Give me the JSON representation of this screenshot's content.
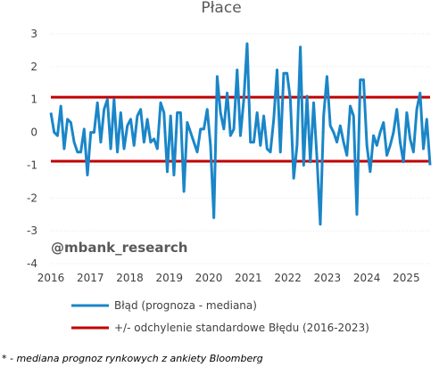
{
  "chart_data": {
    "type": "line",
    "title": "Płace",
    "ylim": [
      -4,
      3
    ],
    "yticks": [
      -4,
      -3,
      -2,
      -1,
      0,
      1,
      2,
      3
    ],
    "xlim": [
      2016,
      2025.6
    ],
    "xticks": [
      2016,
      2017,
      2018,
      2019,
      2020,
      2021,
      2022,
      2023,
      2024,
      2025
    ],
    "grid": "horizontal",
    "legend_position": "bottom",
    "series": [
      {
        "name": "Błąd (prognoza - mediana)",
        "color": "#1a86c8",
        "values": [
          0.6,
          0.0,
          -0.1,
          0.8,
          -0.5,
          0.4,
          0.3,
          -0.3,
          -0.6,
          -0.6,
          0.1,
          -1.3,
          0.0,
          0.0,
          0.9,
          -0.3,
          0.7,
          1.0,
          -0.5,
          1.0,
          -0.6,
          0.6,
          -0.5,
          0.2,
          0.4,
          -0.4,
          0.5,
          0.7,
          -0.3,
          0.4,
          -0.3,
          -0.2,
          -0.5,
          0.9,
          0.6,
          -1.2,
          0.5,
          -1.3,
          0.6,
          0.6,
          -1.8,
          0.3,
          0.0,
          -0.3,
          -0.6,
          0.1,
          0.1,
          0.7,
          -0.4,
          -2.6,
          1.7,
          0.6,
          0.1,
          1.2,
          -0.1,
          0.1,
          1.9,
          -0.1,
          1.0,
          2.7,
          -0.3,
          -0.3,
          0.6,
          -0.4,
          0.5,
          -0.5,
          -0.6,
          0.4,
          1.9,
          -0.6,
          1.8,
          1.8,
          1.0,
          -1.4,
          -0.4,
          2.6,
          -1.0,
          1.1,
          -0.9,
          0.9,
          -0.8,
          -2.8,
          0.5,
          1.7,
          0.2,
          0.0,
          -0.3,
          0.2,
          -0.3,
          -0.7,
          0.8,
          0.5,
          -2.5,
          1.6,
          1.6,
          -0.4,
          -1.2,
          -0.1,
          -0.4,
          0.0,
          0.3,
          -0.7,
          -0.4,
          0.0,
          0.7,
          -0.3,
          -0.9,
          0.6,
          -0.2,
          -0.6,
          0.7,
          1.2,
          -0.5,
          0.4,
          -1.0
        ]
      },
      {
        "name": "+/- odchylenie standardowe Błędu (2016-2023)",
        "color": "#c00000",
        "values": [
          1.07,
          -0.88
        ]
      }
    ]
  },
  "watermark": "@mbank_research",
  "footnote": "* - mediana prognoz rynkowych z ankiety Bloomberg"
}
